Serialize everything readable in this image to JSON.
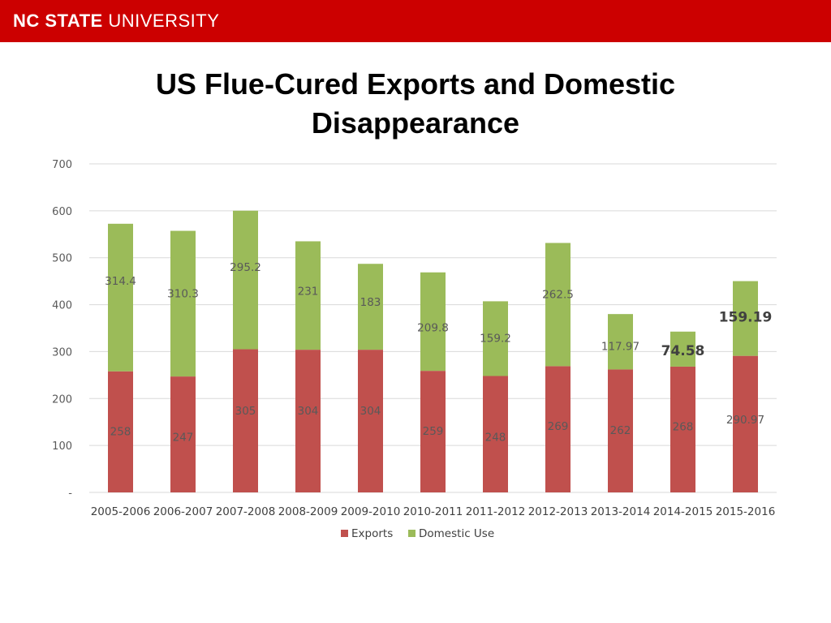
{
  "header": {
    "logo_bold": "NC STATE",
    "logo_light": "UNIVERSITY",
    "color": "#cc0000"
  },
  "slide_title": "US Flue-Cured Exports and Domestic Disappearance",
  "chart_data": {
    "type": "bar",
    "stacked": true,
    "title": "US Flue-Cured Exports and Domestic Disappearance",
    "xlabel": "",
    "ylabel": "",
    "ylim": [
      0,
      700
    ],
    "yticks": [
      0,
      100,
      200,
      300,
      400,
      500,
      600,
      700
    ],
    "ytick_labels": [
      "-",
      "100",
      "200",
      "300",
      "400",
      "500",
      "600",
      "700"
    ],
    "grid": true,
    "legend_position": "bottom",
    "categories": [
      "2005-2006",
      "2006-2007",
      "2007-2008",
      "2008-2009",
      "2009-2010",
      "2010-2011",
      "2011-2012",
      "2012-2013",
      "2013-2014",
      "2014-2015",
      "2015-2016"
    ],
    "series": [
      {
        "name": "Exports",
        "color": "#c0504d",
        "values": [
          258,
          247,
          305,
          304,
          304,
          259,
          248,
          269,
          262,
          268,
          290.97
        ],
        "labels": [
          "258",
          "247",
          "305",
          "304",
          "304",
          "259",
          "248",
          "269",
          "262",
          "268",
          "290.97"
        ]
      },
      {
        "name": "Domestic Use",
        "color": "#9bbb59",
        "values": [
          314.4,
          310.3,
          295.2,
          231,
          183,
          209.8,
          159.2,
          262.5,
          117.97,
          74.58,
          159.19
        ],
        "labels": [
          "314.4",
          "310.3",
          "295.2",
          "231",
          "183",
          "209.8",
          "159.2",
          "262.5",
          "117.97",
          "74.58",
          "159.19"
        ]
      }
    ]
  }
}
